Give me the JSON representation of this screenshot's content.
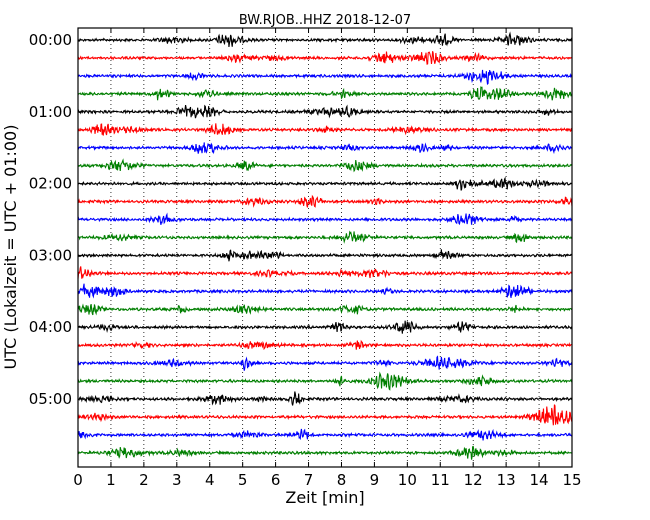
{
  "chart_data": {
    "type": "line",
    "title": "BW.RJOB..HHZ 2018-12-07",
    "xlabel": "Zeit  [min]",
    "ylabel": "UTC (Lokalzeit = UTC + 01:00)",
    "xlim": [
      0,
      15
    ],
    "x_ticks": [
      "0",
      "1",
      "2",
      "3",
      "4",
      "5",
      "6",
      "7",
      "8",
      "9",
      "10",
      "11",
      "12",
      "13",
      "14",
      "15"
    ],
    "y_tick_labels": [
      "00:00",
      "01:00",
      "02:00",
      "03:00",
      "04:00",
      "05:00"
    ],
    "grid": "vertical dotted lines at each minute",
    "line_colors": [
      "#000000",
      "#ff0000",
      "#0000ff",
      "#007f00"
    ],
    "traces_count": 24,
    "trace_interval_minutes": 15,
    "note_data": "Seismogram dayplot: one 15-minute trace per row starting at 00:00 UTC; row i starts at i*15 minutes past midnight."
  }
}
